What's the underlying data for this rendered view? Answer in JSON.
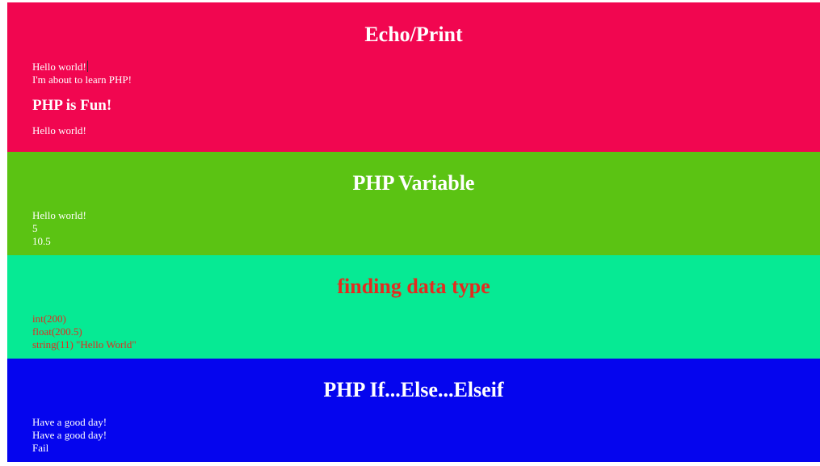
{
  "colors": {
    "echo_bg": "#f10650",
    "variable_bg": "#5bc313",
    "datatype_bg": "#06ea94",
    "datatype_text": "#e52a1e",
    "ifelse_bg": "#0505ee",
    "text": "#ffffff"
  },
  "echo": {
    "title": "Echo/Print",
    "lines": [
      "Hello world!",
      "I'm about to learn PHP!"
    ],
    "subheading": "PHP is Fun!",
    "after": "Hello world!"
  },
  "variable": {
    "title": "PHP Variable",
    "lines": [
      "Hello world!",
      "5",
      "10.5"
    ]
  },
  "datatype": {
    "title": "finding data type",
    "lines": [
      "int(200)",
      "float(200.5)",
      "string(11) \"Hello World\""
    ]
  },
  "ifelse": {
    "title": "PHP If...Else...Elseif",
    "lines": [
      "Have a good day!",
      "Have a good day!",
      "Fail"
    ]
  }
}
